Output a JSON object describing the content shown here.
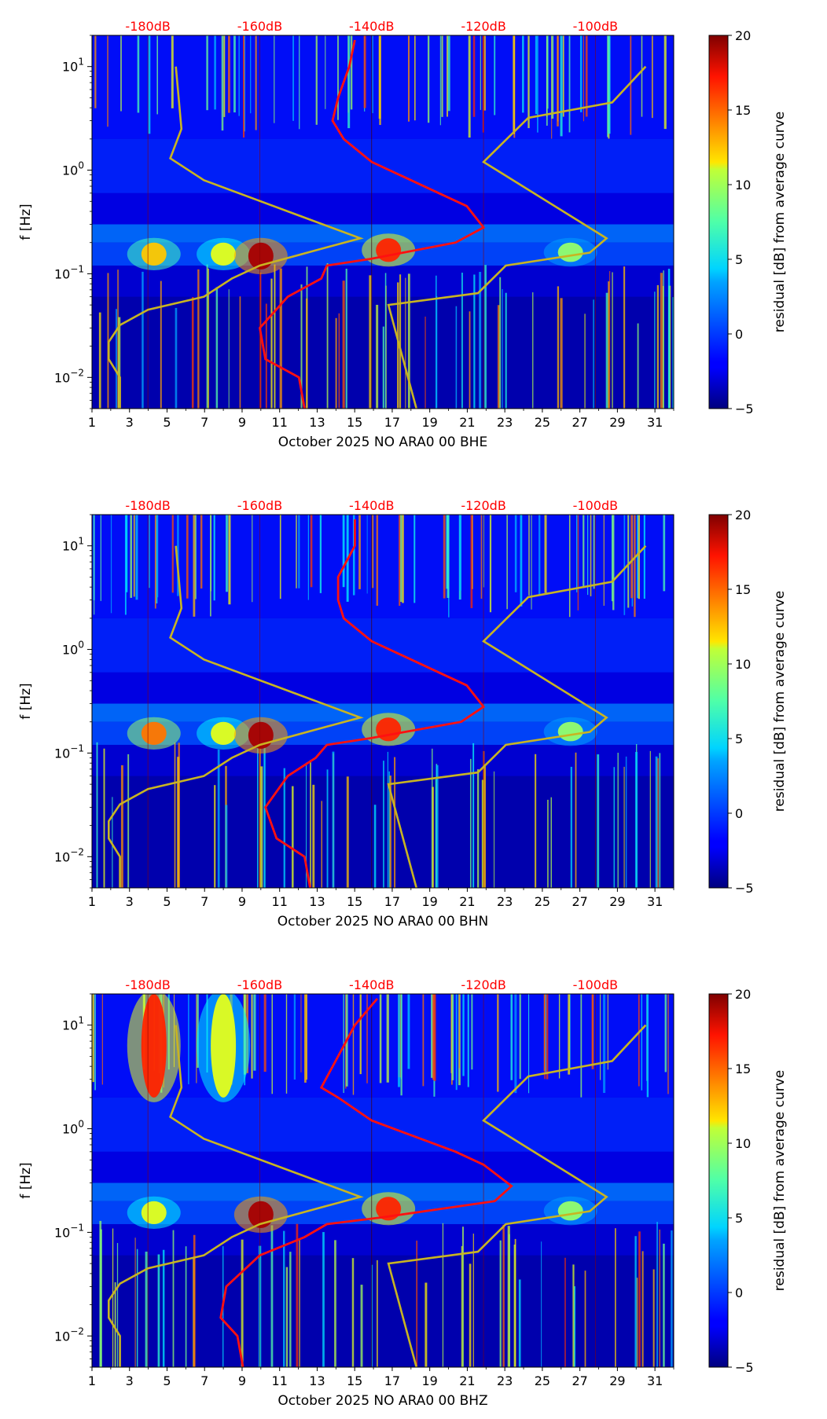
{
  "figure": {
    "colorbar": {
      "label": "residual [dB] from average curve",
      "ticks": [
        "20",
        "15",
        "10",
        "5",
        "0",
        "−5"
      ],
      "range": [
        -5,
        20
      ]
    }
  },
  "chart_data": [
    {
      "type": "heatmap",
      "xlabel": "October 2025 NO ARA0 00 BHE",
      "ylabel": "f [Hz]",
      "x_ticks": [
        "1",
        "3",
        "5",
        "7",
        "9",
        "11",
        "13",
        "15",
        "17",
        "19",
        "21",
        "23",
        "25",
        "27",
        "29",
        "31"
      ],
      "y_ticks": [
        "10^1",
        "10^0",
        "10^-1",
        "10^-2"
      ],
      "y_scale": "log",
      "db_ticks": [
        "-180dB",
        "-160dB",
        "-140dB",
        "-120dB",
        "-100dB"
      ],
      "xlim": [
        1,
        32
      ],
      "ylim": [
        0.005,
        20
      ],
      "daily_bright_bands": [
        {
          "day": 4.3,
          "f_low": 0.12,
          "f_high": 0.2,
          "level": 12
        },
        {
          "day": 8.0,
          "f_low": 0.12,
          "f_high": 0.2,
          "level": 10
        },
        {
          "day": 10.0,
          "f_low": 0.11,
          "f_high": 0.2,
          "level": 19
        },
        {
          "day": 16.8,
          "f_low": 0.13,
          "f_high": 0.22,
          "level": 16
        },
        {
          "day": 26.5,
          "f_low": 0.13,
          "f_high": 0.2,
          "level": 8
        }
      ],
      "red_curve_db": [
        {
          "f": 18,
          "db": -143
        },
        {
          "f": 10,
          "db": -144
        },
        {
          "f": 5,
          "db": -146
        },
        {
          "f": 3,
          "db": -147
        },
        {
          "f": 2,
          "db": -145
        },
        {
          "f": 1.2,
          "db": -140
        },
        {
          "f": 0.6,
          "db": -128
        },
        {
          "f": 0.45,
          "db": -123
        },
        {
          "f": 0.28,
          "db": -120
        },
        {
          "f": 0.2,
          "db": -125
        },
        {
          "f": 0.14,
          "db": -140
        },
        {
          "f": 0.12,
          "db": -148
        },
        {
          "f": 0.09,
          "db": -149
        },
        {
          "f": 0.06,
          "db": -155
        },
        {
          "f": 0.03,
          "db": -160
        },
        {
          "f": 0.015,
          "db": -159
        },
        {
          "f": 0.01,
          "db": -153
        },
        {
          "f": 0.005,
          "db": -152
        }
      ],
      "model_curves": {
        "low": [
          {
            "f": 10,
            "db": -175
          },
          {
            "f": 2.5,
            "db": -174
          },
          {
            "f": 1.3,
            "db": -176
          },
          {
            "f": 0.8,
            "db": -170
          },
          {
            "f": 0.4,
            "db": -155
          },
          {
            "f": 0.22,
            "db": -142
          },
          {
            "f": 0.18,
            "db": -148
          },
          {
            "f": 0.12,
            "db": -160
          },
          {
            "f": 0.09,
            "db": -165
          },
          {
            "f": 0.06,
            "db": -170
          },
          {
            "f": 0.045,
            "db": -180
          },
          {
            "f": 0.032,
            "db": -185
          },
          {
            "f": 0.022,
            "db": -187
          },
          {
            "f": 0.015,
            "db": -187
          },
          {
            "f": 0.01,
            "db": -185
          },
          {
            "f": 0.005,
            "db": -185
          }
        ],
        "high": [
          {
            "f": 10,
            "db": -91
          },
          {
            "f": 4.5,
            "db": -97
          },
          {
            "f": 3.2,
            "db": -112
          },
          {
            "f": 1.2,
            "db": -120
          },
          {
            "f": 0.22,
            "db": -98
          },
          {
            "f": 0.16,
            "db": -101
          },
          {
            "f": 0.12,
            "db": -116
          },
          {
            "f": 0.065,
            "db": -121
          },
          {
            "f": 0.05,
            "db": -137
          },
          {
            "f": 0.005,
            "db": -132
          }
        ]
      }
    },
    {
      "type": "heatmap",
      "xlabel": "October 2025 NO ARA0 00 BHN",
      "ylabel": "f [Hz]",
      "x_ticks": [
        "1",
        "3",
        "5",
        "7",
        "9",
        "11",
        "13",
        "15",
        "17",
        "19",
        "21",
        "23",
        "25",
        "27",
        "29",
        "31"
      ],
      "y_ticks": [
        "10^1",
        "10^0",
        "10^-1",
        "10^-2"
      ],
      "y_scale": "log",
      "db_ticks": [
        "-180dB",
        "-160dB",
        "-140dB",
        "-120dB",
        "-100dB"
      ],
      "xlim": [
        1,
        32
      ],
      "ylim": [
        0.005,
        20
      ],
      "daily_bright_bands": [
        {
          "day": 4.3,
          "f_low": 0.12,
          "f_high": 0.2,
          "level": 14
        },
        {
          "day": 8.0,
          "f_low": 0.12,
          "f_high": 0.2,
          "level": 10
        },
        {
          "day": 10.0,
          "f_low": 0.11,
          "f_high": 0.2,
          "level": 19
        },
        {
          "day": 16.8,
          "f_low": 0.13,
          "f_high": 0.22,
          "level": 16
        },
        {
          "day": 26.5,
          "f_low": 0.13,
          "f_high": 0.2,
          "level": 8
        }
      ],
      "red_curve_db": [
        {
          "f": 18,
          "db": -143
        },
        {
          "f": 10,
          "db": -143
        },
        {
          "f": 5,
          "db": -146
        },
        {
          "f": 3,
          "db": -146
        },
        {
          "f": 2,
          "db": -145
        },
        {
          "f": 1.2,
          "db": -140
        },
        {
          "f": 0.6,
          "db": -128
        },
        {
          "f": 0.45,
          "db": -123
        },
        {
          "f": 0.28,
          "db": -120
        },
        {
          "f": 0.2,
          "db": -124
        },
        {
          "f": 0.14,
          "db": -140
        },
        {
          "f": 0.12,
          "db": -148
        },
        {
          "f": 0.09,
          "db": -150
        },
        {
          "f": 0.06,
          "db": -155
        },
        {
          "f": 0.03,
          "db": -159
        },
        {
          "f": 0.015,
          "db": -157
        },
        {
          "f": 0.01,
          "db": -152
        },
        {
          "f": 0.005,
          "db": -151
        }
      ],
      "model_curves": {
        "low": [
          {
            "f": 10,
            "db": -175
          },
          {
            "f": 2.5,
            "db": -174
          },
          {
            "f": 1.3,
            "db": -176
          },
          {
            "f": 0.8,
            "db": -170
          },
          {
            "f": 0.4,
            "db": -155
          },
          {
            "f": 0.22,
            "db": -142
          },
          {
            "f": 0.18,
            "db": -148
          },
          {
            "f": 0.12,
            "db": -160
          },
          {
            "f": 0.09,
            "db": -165
          },
          {
            "f": 0.06,
            "db": -170
          },
          {
            "f": 0.045,
            "db": -180
          },
          {
            "f": 0.032,
            "db": -185
          },
          {
            "f": 0.022,
            "db": -187
          },
          {
            "f": 0.015,
            "db": -187
          },
          {
            "f": 0.01,
            "db": -185
          },
          {
            "f": 0.005,
            "db": -185
          }
        ],
        "high": [
          {
            "f": 10,
            "db": -91
          },
          {
            "f": 4.5,
            "db": -97
          },
          {
            "f": 3.2,
            "db": -112
          },
          {
            "f": 1.2,
            "db": -120
          },
          {
            "f": 0.22,
            "db": -98
          },
          {
            "f": 0.16,
            "db": -101
          },
          {
            "f": 0.12,
            "db": -116
          },
          {
            "f": 0.065,
            "db": -121
          },
          {
            "f": 0.05,
            "db": -137
          },
          {
            "f": 0.005,
            "db": -132
          }
        ]
      }
    },
    {
      "type": "heatmap",
      "xlabel": "October 2025 NO ARA0 00 BHZ",
      "ylabel": "f [Hz]",
      "x_ticks": [
        "1",
        "3",
        "5",
        "7",
        "9",
        "11",
        "13",
        "15",
        "17",
        "19",
        "21",
        "23",
        "25",
        "27",
        "29",
        "31"
      ],
      "y_ticks": [
        "10^1",
        "10^0",
        "10^-1",
        "10^-2"
      ],
      "y_scale": "log",
      "db_ticks": [
        "-180dB",
        "-160dB",
        "-140dB",
        "-120dB",
        "-100dB"
      ],
      "xlim": [
        1,
        32
      ],
      "ylim": [
        0.005,
        20
      ],
      "daily_bright_bands": [
        {
          "day": 4.3,
          "f_low": 0.12,
          "f_high": 0.2,
          "level": 10
        },
        {
          "day": 4.3,
          "f_low": 2.0,
          "f_high": 20,
          "level": 16
        },
        {
          "day": 8.0,
          "f_low": 2.0,
          "f_high": 20,
          "level": 10
        },
        {
          "day": 10.0,
          "f_low": 0.11,
          "f_high": 0.2,
          "level": 19
        },
        {
          "day": 16.8,
          "f_low": 0.13,
          "f_high": 0.22,
          "level": 16
        },
        {
          "day": 26.5,
          "f_low": 0.13,
          "f_high": 0.2,
          "level": 8
        }
      ],
      "red_curve_db": [
        {
          "f": 18,
          "db": -139
        },
        {
          "f": 10,
          "db": -143
        },
        {
          "f": 5,
          "db": -146
        },
        {
          "f": 2.5,
          "db": -149
        },
        {
          "f": 2,
          "db": -146
        },
        {
          "f": 1.2,
          "db": -140
        },
        {
          "f": 0.6,
          "db": -125
        },
        {
          "f": 0.45,
          "db": -120
        },
        {
          "f": 0.28,
          "db": -115
        },
        {
          "f": 0.2,
          "db": -118
        },
        {
          "f": 0.14,
          "db": -138
        },
        {
          "f": 0.12,
          "db": -148
        },
        {
          "f": 0.09,
          "db": -152
        },
        {
          "f": 0.06,
          "db": -160
        },
        {
          "f": 0.03,
          "db": -166
        },
        {
          "f": 0.015,
          "db": -167
        },
        {
          "f": 0.01,
          "db": -164
        },
        {
          "f": 0.005,
          "db": -163
        }
      ],
      "model_curves": {
        "low": [
          {
            "f": 10,
            "db": -175
          },
          {
            "f": 2.5,
            "db": -174
          },
          {
            "f": 1.3,
            "db": -176
          },
          {
            "f": 0.8,
            "db": -170
          },
          {
            "f": 0.4,
            "db": -155
          },
          {
            "f": 0.22,
            "db": -142
          },
          {
            "f": 0.18,
            "db": -148
          },
          {
            "f": 0.12,
            "db": -160
          },
          {
            "f": 0.09,
            "db": -165
          },
          {
            "f": 0.06,
            "db": -170
          },
          {
            "f": 0.045,
            "db": -180
          },
          {
            "f": 0.032,
            "db": -185
          },
          {
            "f": 0.022,
            "db": -187
          },
          {
            "f": 0.015,
            "db": -187
          },
          {
            "f": 0.01,
            "db": -185
          },
          {
            "f": 0.005,
            "db": -185
          }
        ],
        "high": [
          {
            "f": 10,
            "db": -91
          },
          {
            "f": 4.5,
            "db": -97
          },
          {
            "f": 3.2,
            "db": -112
          },
          {
            "f": 1.2,
            "db": -120
          },
          {
            "f": 0.22,
            "db": -98
          },
          {
            "f": 0.16,
            "db": -101
          },
          {
            "f": 0.12,
            "db": -116
          },
          {
            "f": 0.065,
            "db": -121
          },
          {
            "f": 0.05,
            "db": -137
          },
          {
            "f": 0.005,
            "db": -132
          }
        ]
      }
    }
  ]
}
